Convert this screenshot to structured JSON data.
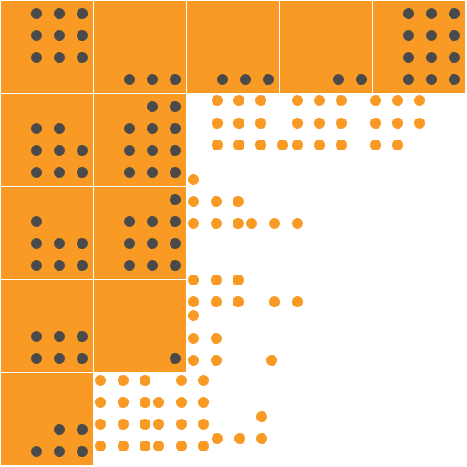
{
  "colors": {
    "tile_fill": "#f89a24",
    "tile_dot": "#4a4a4a",
    "loose_dot": "#f89a24",
    "background": "#ffffff",
    "gridline": "#ffffff"
  },
  "tiles": [
    {
      "row": 0,
      "col": 0,
      "dot_count": 9
    },
    {
      "row": 0,
      "col": 1,
      "dot_count": 3
    },
    {
      "row": 0,
      "col": 2,
      "dot_count": 3
    },
    {
      "row": 0,
      "col": 3,
      "dot_count": 2
    },
    {
      "row": 0,
      "col": 4,
      "dot_count": 12
    },
    {
      "row": 1,
      "col": 0,
      "dot_count": 8
    },
    {
      "row": 1,
      "col": 1,
      "dot_count": 11
    },
    {
      "row": 2,
      "col": 0,
      "dot_count": 7
    },
    {
      "row": 2,
      "col": 1,
      "dot_count": 10
    },
    {
      "row": 3,
      "col": 0,
      "dot_count": 6
    },
    {
      "row": 3,
      "col": 1,
      "dot_count": 1
    },
    {
      "row": 4,
      "col": 0,
      "dot_count": 5
    }
  ]
}
